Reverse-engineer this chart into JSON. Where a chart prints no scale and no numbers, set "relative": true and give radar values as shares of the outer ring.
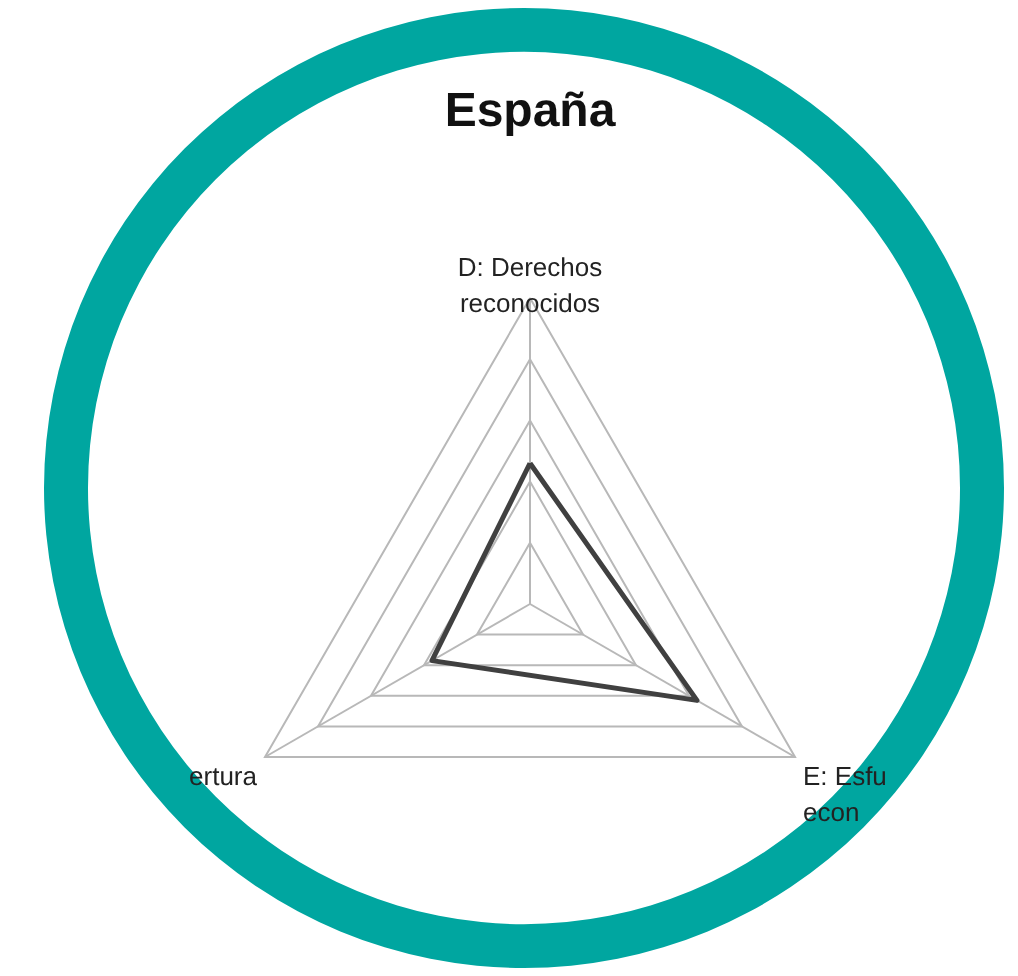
{
  "chart_data": {
    "type": "radar",
    "title": "España",
    "categories": [
      "D: Derechos\nreconocidos",
      "E: Esfu\necon",
      "ertura"
    ],
    "series": [
      {
        "color": "#404040",
        "values": [
          0.46,
          0.63,
          0.37
        ]
      }
    ],
    "relative": true,
    "grid": true
  }
}
